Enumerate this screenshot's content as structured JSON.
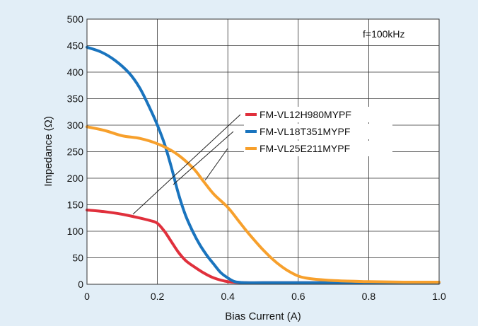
{
  "chart_data": {
    "type": "line",
    "title": "",
    "annotation": "f=100kHz",
    "xlabel": "Bias Current (A)",
    "ylabel": "Impedance (Ω)",
    "xlim": [
      0,
      1.0
    ],
    "ylim": [
      0,
      500
    ],
    "xticks": [
      "0",
      "0.2",
      "0.4",
      "0.6",
      "0.8",
      "1.0"
    ],
    "yticks": [
      "0",
      "50",
      "100",
      "150",
      "200",
      "250",
      "300",
      "350",
      "400",
      "450",
      "500"
    ],
    "grid": true,
    "legend_position": "center-right",
    "series": [
      {
        "name": "FM-VL12H980MYPF",
        "color": "#e0303c",
        "x": [
          0,
          0.05,
          0.1,
          0.15,
          0.18,
          0.2,
          0.22,
          0.24,
          0.26,
          0.28,
          0.3,
          0.33,
          0.36,
          0.4,
          0.45,
          0.5,
          0.6,
          0.8,
          1.0
        ],
        "y": [
          140,
          137,
          132,
          125,
          120,
          115,
          100,
          80,
          60,
          45,
          35,
          22,
          12,
          5,
          3,
          3,
          3,
          3,
          3
        ]
      },
      {
        "name": "FM-VL18T351MYPF",
        "color": "#1a74be",
        "x": [
          0,
          0.04,
          0.08,
          0.12,
          0.15,
          0.18,
          0.2,
          0.22,
          0.24,
          0.26,
          0.28,
          0.3,
          0.32,
          0.34,
          0.36,
          0.38,
          0.4,
          0.42,
          0.45,
          0.5,
          0.6,
          0.8,
          1.0
        ],
        "y": [
          447,
          438,
          422,
          398,
          370,
          330,
          300,
          265,
          220,
          170,
          130,
          100,
          75,
          55,
          38,
          22,
          12,
          5,
          3,
          3,
          3,
          3,
          3
        ]
      },
      {
        "name": "FM-VL25E211MYPF",
        "color": "#f7a02c",
        "x": [
          0,
          0.05,
          0.1,
          0.15,
          0.2,
          0.25,
          0.3,
          0.33,
          0.36,
          0.4,
          0.43,
          0.46,
          0.5,
          0.54,
          0.58,
          0.62,
          0.7,
          0.8,
          0.9,
          1.0
        ],
        "y": [
          297,
          290,
          280,
          275,
          265,
          248,
          220,
          195,
          170,
          145,
          120,
          95,
          65,
          40,
          22,
          12,
          7,
          5,
          4,
          4
        ]
      }
    ]
  }
}
